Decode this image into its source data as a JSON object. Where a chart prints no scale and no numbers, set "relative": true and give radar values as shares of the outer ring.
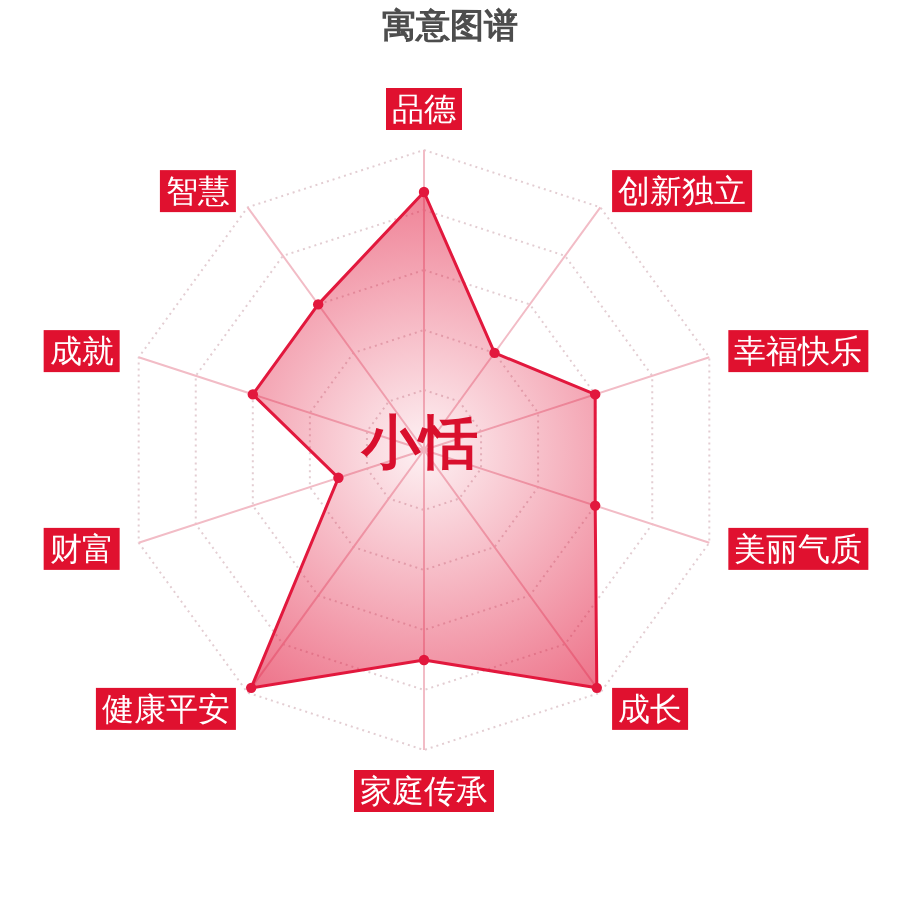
{
  "chart_data": {
    "type": "radar",
    "title": "寓意图谱",
    "categories": [
      "品德",
      "创新独立",
      "幸福快乐",
      "美丽气质",
      "成长",
      "家庭传承",
      "健康平安",
      "财富",
      "成就",
      "智慧"
    ],
    "relative": true,
    "series": [
      {
        "color": "#e2183d",
        "values": [
          0.86,
          0.4,
          0.6,
          0.6,
          0.98,
          0.7,
          0.98,
          0.3,
          0.6,
          0.6
        ]
      }
    ],
    "annotations": [
      "小恬"
    ],
    "grid": true,
    "marker": "circle"
  }
}
